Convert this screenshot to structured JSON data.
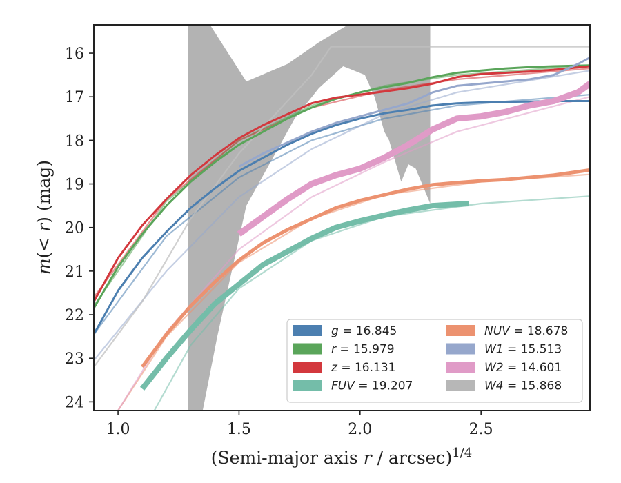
{
  "chart_data": {
    "type": "line",
    "xlabel": "(Semi-major axis r / arcsec)",
    "xlabel_parts": {
      "prefix": "(Semi-major axis ",
      "var": "r",
      "suffix": " / arcsec)",
      "exponent": "1/4"
    },
    "ylabel": "m(< r) (mag)",
    "ylabel_parts": {
      "m": "m",
      "inner": "(< ",
      "r": "r",
      "close": ")",
      "unit": " (mag)"
    },
    "xlim": [
      0.9,
      2.95
    ],
    "ylim": [
      24.2,
      15.35
    ],
    "x_ticks": [
      1.0,
      1.5,
      2.0,
      2.5
    ],
    "x_tick_labels": [
      "1.0",
      "1.5",
      "2.0",
      "2.5"
    ],
    "y_ticks": [
      16,
      17,
      18,
      19,
      20,
      21,
      22,
      23,
      24
    ],
    "y_tick_labels": [
      "16",
      "17",
      "18",
      "19",
      "20",
      "21",
      "22",
      "23",
      "24"
    ],
    "grid": false,
    "legend_position": "bottom-right",
    "legend": [
      {
        "band": "g",
        "italic": true,
        "value": "= 16.845",
        "color": "#4c7fb0"
      },
      {
        "band": "r",
        "italic": true,
        "value": "= 15.979",
        "color": "#5aa55a"
      },
      {
        "band": "z",
        "italic": true,
        "value": "= 16.131",
        "color": "#d3383d"
      },
      {
        "band": "FUV",
        "italic": true,
        "value": "= 19.207",
        "color": "#74bda9"
      },
      {
        "band": "NUV",
        "italic": true,
        "value": "= 18.678",
        "color": "#ec9270"
      },
      {
        "band": "W1",
        "italic": true,
        "value": "= 15.513",
        "color": "#96a7cc"
      },
      {
        "band": "W2",
        "italic": true,
        "value": "= 14.601",
        "color": "#e09bc7"
      },
      {
        "band": "W4",
        "italic": true,
        "value": "= 15.868",
        "color": "#b7b7b7"
      }
    ],
    "series": [
      {
        "name": "g",
        "color": "#4c7fb0",
        "data": [
          [
            0.9,
            22.45
          ],
          [
            1.0,
            21.45
          ],
          [
            1.1,
            20.7
          ],
          [
            1.2,
            20.1
          ],
          [
            1.3,
            19.55
          ],
          [
            1.4,
            19.1
          ],
          [
            1.5,
            18.7
          ],
          [
            1.6,
            18.4
          ],
          [
            1.7,
            18.1
          ],
          [
            1.8,
            17.85
          ],
          [
            1.9,
            17.65
          ],
          [
            2.0,
            17.5
          ],
          [
            2.1,
            17.38
          ],
          [
            2.2,
            17.3
          ],
          [
            2.3,
            17.2
          ],
          [
            2.4,
            17.15
          ],
          [
            2.5,
            17.13
          ],
          [
            2.6,
            17.12
          ],
          [
            2.7,
            17.11
          ],
          [
            2.8,
            17.1
          ],
          [
            2.95,
            17.1
          ]
        ],
        "model": [
          [
            0.9,
            22.45
          ],
          [
            1.2,
            20.2
          ],
          [
            1.5,
            18.85
          ],
          [
            1.8,
            18.0
          ],
          [
            2.1,
            17.5
          ],
          [
            2.4,
            17.2
          ],
          [
            2.95,
            16.95
          ]
        ]
      },
      {
        "name": "r",
        "color": "#5aa55a",
        "data": [
          [
            0.9,
            21.85
          ],
          [
            1.0,
            20.9
          ],
          [
            1.1,
            20.15
          ],
          [
            1.2,
            19.5
          ],
          [
            1.3,
            18.95
          ],
          [
            1.4,
            18.5
          ],
          [
            1.5,
            18.1
          ],
          [
            1.6,
            17.8
          ],
          [
            1.7,
            17.5
          ],
          [
            1.8,
            17.25
          ],
          [
            1.9,
            17.05
          ],
          [
            2.0,
            16.9
          ],
          [
            2.1,
            16.78
          ],
          [
            2.2,
            16.68
          ],
          [
            2.3,
            16.55
          ],
          [
            2.4,
            16.45
          ],
          [
            2.5,
            16.4
          ],
          [
            2.6,
            16.35
          ],
          [
            2.7,
            16.32
          ],
          [
            2.8,
            16.3
          ],
          [
            2.95,
            16.28
          ]
        ],
        "model": [
          [
            0.9,
            21.8
          ],
          [
            1.2,
            19.4
          ],
          [
            1.5,
            18.0
          ],
          [
            1.8,
            17.2
          ],
          [
            2.1,
            16.75
          ],
          [
            2.4,
            16.5
          ],
          [
            2.95,
            16.28
          ]
        ]
      },
      {
        "name": "z",
        "color": "#d3383d",
        "data": [
          [
            0.9,
            21.7
          ],
          [
            1.0,
            20.7
          ],
          [
            1.1,
            19.95
          ],
          [
            1.2,
            19.35
          ],
          [
            1.3,
            18.8
          ],
          [
            1.4,
            18.35
          ],
          [
            1.5,
            17.95
          ],
          [
            1.6,
            17.65
          ],
          [
            1.7,
            17.4
          ],
          [
            1.8,
            17.15
          ],
          [
            1.9,
            17.02
          ],
          [
            2.0,
            16.95
          ],
          [
            2.1,
            16.88
          ],
          [
            2.2,
            16.8
          ],
          [
            2.3,
            16.7
          ],
          [
            2.4,
            16.55
          ],
          [
            2.5,
            16.48
          ],
          [
            2.6,
            16.45
          ],
          [
            2.7,
            16.42
          ],
          [
            2.8,
            16.38
          ],
          [
            2.95,
            16.3
          ]
        ],
        "model": [
          [
            0.9,
            21.6
          ],
          [
            1.2,
            19.35
          ],
          [
            1.5,
            18.0
          ],
          [
            1.8,
            17.25
          ],
          [
            2.1,
            16.85
          ],
          [
            2.4,
            16.6
          ],
          [
            2.95,
            16.35
          ]
        ]
      },
      {
        "name": "FUV",
        "color": "#74bda9",
        "data": [
          [
            1.1,
            23.7
          ],
          [
            1.2,
            23.0
          ],
          [
            1.3,
            22.35
          ],
          [
            1.4,
            21.75
          ],
          [
            1.5,
            21.3
          ],
          [
            1.6,
            20.85
          ],
          [
            1.7,
            20.55
          ],
          [
            1.8,
            20.25
          ],
          [
            1.9,
            20.0
          ],
          [
            2.0,
            19.85
          ],
          [
            2.1,
            19.72
          ],
          [
            2.2,
            19.6
          ],
          [
            2.3,
            19.5
          ],
          [
            2.45,
            19.45
          ]
        ],
        "model": [
          [
            1.15,
            24.2
          ],
          [
            1.3,
            22.7
          ],
          [
            1.5,
            21.4
          ],
          [
            1.8,
            20.3
          ],
          [
            2.1,
            19.75
          ],
          [
            2.5,
            19.45
          ],
          [
            2.95,
            19.28
          ]
        ]
      },
      {
        "name": "NUV",
        "color": "#ec9270",
        "data": [
          [
            1.1,
            23.2
          ],
          [
            1.2,
            22.45
          ],
          [
            1.3,
            21.8
          ],
          [
            1.4,
            21.25
          ],
          [
            1.5,
            20.75
          ],
          [
            1.6,
            20.35
          ],
          [
            1.7,
            20.05
          ],
          [
            1.8,
            19.8
          ],
          [
            1.9,
            19.55
          ],
          [
            2.0,
            19.38
          ],
          [
            2.1,
            19.25
          ],
          [
            2.2,
            19.12
          ],
          [
            2.3,
            19.02
          ],
          [
            2.4,
            18.97
          ],
          [
            2.5,
            18.93
          ],
          [
            2.6,
            18.9
          ],
          [
            2.7,
            18.85
          ],
          [
            2.8,
            18.8
          ],
          [
            2.95,
            18.68
          ]
        ],
        "model": [
          [
            1.0,
            24.2
          ],
          [
            1.2,
            22.5
          ],
          [
            1.5,
            20.8
          ],
          [
            1.8,
            19.8
          ],
          [
            2.1,
            19.25
          ],
          [
            2.5,
            18.95
          ],
          [
            2.95,
            18.78
          ]
        ]
      },
      {
        "name": "W1",
        "color": "#96a7cc",
        "data": [
          [
            1.5,
            18.6
          ],
          [
            1.6,
            18.3
          ],
          [
            1.7,
            18.05
          ],
          [
            1.8,
            17.8
          ],
          [
            1.9,
            17.6
          ],
          [
            2.0,
            17.45
          ],
          [
            2.1,
            17.3
          ],
          [
            2.2,
            17.15
          ],
          [
            2.3,
            16.9
          ],
          [
            2.4,
            16.75
          ],
          [
            2.5,
            16.7
          ],
          [
            2.6,
            16.65
          ],
          [
            2.7,
            16.6
          ],
          [
            2.8,
            16.5
          ],
          [
            2.9,
            16.25
          ],
          [
            2.95,
            16.1
          ]
        ],
        "model": [
          [
            0.9,
            23.05
          ],
          [
            1.2,
            21.0
          ],
          [
            1.5,
            19.3
          ],
          [
            1.8,
            18.2
          ],
          [
            2.1,
            17.4
          ],
          [
            2.4,
            16.9
          ],
          [
            2.95,
            16.4
          ]
        ]
      },
      {
        "name": "W2",
        "color": "#e09bc7",
        "data": [
          [
            1.5,
            20.15
          ],
          [
            1.6,
            19.75
          ],
          [
            1.7,
            19.35
          ],
          [
            1.8,
            19.0
          ],
          [
            1.9,
            18.8
          ],
          [
            2.0,
            18.65
          ],
          [
            2.1,
            18.4
          ],
          [
            2.2,
            18.1
          ],
          [
            2.3,
            17.75
          ],
          [
            2.4,
            17.5
          ],
          [
            2.5,
            17.45
          ],
          [
            2.6,
            17.35
          ],
          [
            2.7,
            17.2
          ],
          [
            2.8,
            17.1
          ],
          [
            2.9,
            16.9
          ],
          [
            2.95,
            16.7
          ]
        ],
        "model": [
          [
            1.0,
            24.2
          ],
          [
            1.2,
            22.4
          ],
          [
            1.5,
            20.5
          ],
          [
            1.8,
            19.3
          ],
          [
            2.1,
            18.5
          ],
          [
            2.4,
            17.8
          ],
          [
            2.95,
            17.0
          ]
        ]
      },
      {
        "name": "W4",
        "color": "#c0c0c0",
        "data": [],
        "model": [
          [
            0.9,
            23.2
          ],
          [
            1.1,
            21.7
          ],
          [
            1.3,
            19.8
          ],
          [
            1.5,
            18.3
          ],
          [
            1.7,
            17.1
          ],
          [
            1.8,
            16.5
          ],
          [
            1.88,
            15.85
          ],
          [
            2.95,
            15.85
          ]
        ]
      }
    ],
    "w4_band": {
      "color": "#b3b3b3",
      "upper": [
        [
          1.29,
          15.35
        ],
        [
          1.38,
          15.35
        ],
        [
          1.53,
          16.65
        ],
        [
          1.7,
          16.25
        ],
        [
          1.83,
          15.75
        ],
        [
          1.95,
          15.35
        ],
        [
          2.29,
          15.35
        ]
      ],
      "lower": [
        [
          2.29,
          19.45
        ],
        [
          2.23,
          18.65
        ],
        [
          2.2,
          18.55
        ],
        [
          2.17,
          18.95
        ],
        [
          2.12,
          18.0
        ],
        [
          2.1,
          17.8
        ],
        [
          2.06,
          17.0
        ],
        [
          2.02,
          16.5
        ],
        [
          1.93,
          16.3
        ],
        [
          1.83,
          16.8
        ],
        [
          1.73,
          17.5
        ],
        [
          1.63,
          18.5
        ],
        [
          1.53,
          19.5
        ],
        [
          1.47,
          21.0
        ],
        [
          1.41,
          22.5
        ],
        [
          1.35,
          24.2
        ],
        [
          1.29,
          24.2
        ]
      ]
    }
  }
}
